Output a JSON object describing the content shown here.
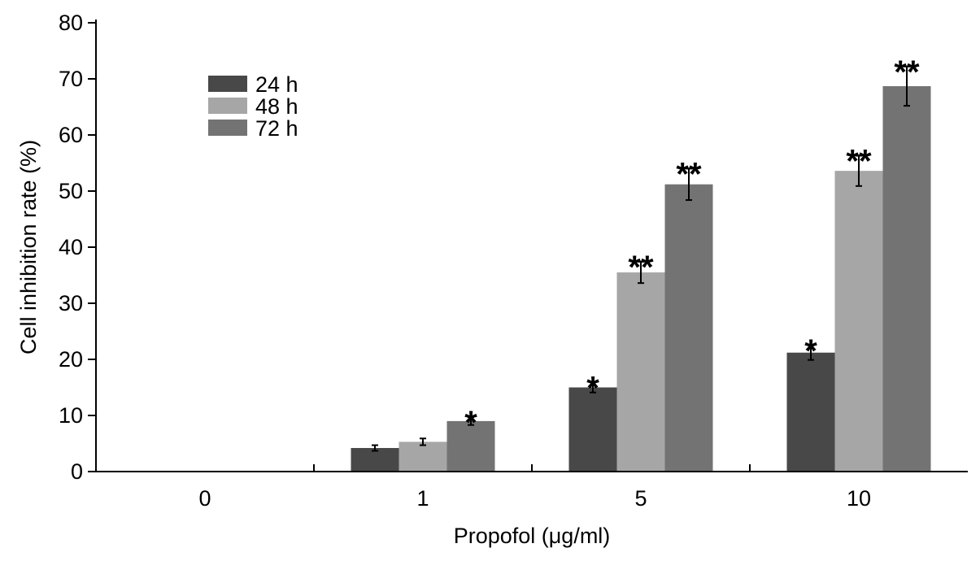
{
  "chart_data": {
    "type": "bar",
    "title": "",
    "xlabel": "Propofol (μg/ml)",
    "ylabel": "Cell inhibition rate (%)",
    "ylim": [
      0,
      80
    ],
    "yticks": [
      0,
      10,
      20,
      30,
      40,
      50,
      60,
      70,
      80
    ],
    "categories": [
      "0",
      "1",
      "5",
      "10"
    ],
    "legend_position": "top-left",
    "series": [
      {
        "name": "24 h",
        "color": "#484848",
        "values": [
          0,
          4.2,
          15.0,
          21.2
        ],
        "errors": [
          0,
          0.5,
          0.9,
          1.3
        ],
        "significance": [
          "",
          "",
          "*",
          "*"
        ]
      },
      {
        "name": "48 h",
        "color": "#a6a6a6",
        "values": [
          0,
          5.3,
          35.5,
          53.6
        ],
        "errors": [
          0,
          0.6,
          1.9,
          2.7
        ],
        "significance": [
          "",
          "",
          "**",
          "**"
        ]
      },
      {
        "name": "72 h",
        "color": "#737373",
        "values": [
          0,
          9.0,
          51.2,
          68.7
        ],
        "errors": [
          0,
          0.7,
          2.8,
          3.5
        ],
        "significance": [
          "",
          "*",
          "**",
          "**"
        ]
      }
    ]
  }
}
